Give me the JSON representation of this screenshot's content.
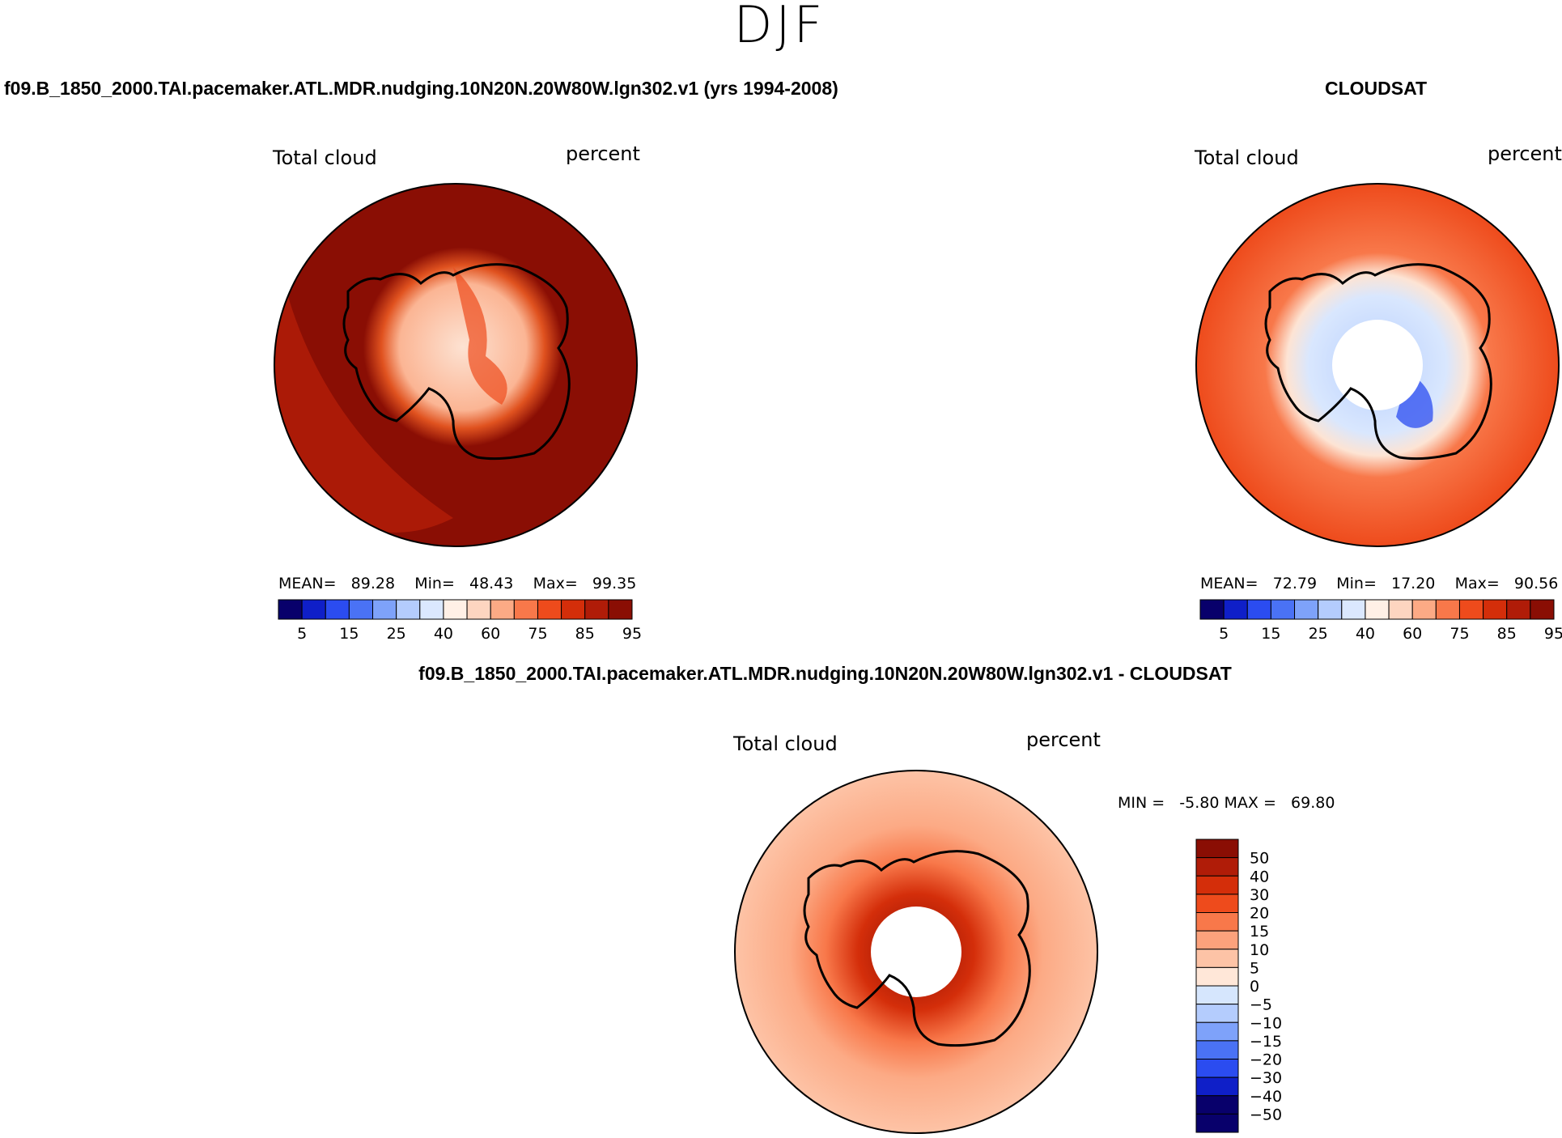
{
  "figure": {
    "season": "DJF"
  },
  "panels": [
    {
      "id": "model",
      "title": "f09.B_1850_2000.TAI.pacemaker.ATL.MDR.nudging.10N20N.20W80W.lgn302.v1 (yrs 1994-2008)",
      "left_label": "Total cloud",
      "right_label": "percent",
      "stats": {
        "mean_label": "MEAN=",
        "mean": "89.28",
        "min_label": "Min=",
        "min": "48.43",
        "max_label": "Max=",
        "max": "99.35"
      }
    },
    {
      "id": "obs",
      "title": "CLOUDSAT",
      "left_label": "Total cloud",
      "right_label": "percent",
      "stats": {
        "mean_label": "MEAN=",
        "mean": "72.79",
        "min_label": "Min=",
        "min": "17.20",
        "max_label": "Max=",
        "max": "90.56"
      }
    },
    {
      "id": "diff",
      "title": "f09.B_1850_2000.TAI.pacemaker.ATL.MDR.nudging.10N20N.20W80W.lgn302.v1 - CLOUDSAT",
      "left_label": "Total cloud",
      "right_label": "percent",
      "stats": {
        "min_label": "MIN =",
        "min": "-5.80",
        "max_label": "MAX =",
        "max": "69.80"
      }
    }
  ],
  "chart_data": [
    {
      "type": "heatmap",
      "title": "f09.B_1850_2000.TAI.pacemaker.ATL.MDR.nudging.10N20N.20W80W.lgn302.v1 (yrs 1994-2008)",
      "variable": "Total cloud",
      "units": "percent",
      "projection": "south polar stereographic",
      "colorbar_orientation": "horizontal",
      "colorbar_ticks": [
        "5",
        "15",
        "25",
        "40",
        "60",
        "75",
        "85",
        "95"
      ],
      "colorbar_levels": [
        5,
        10,
        15,
        20,
        25,
        30,
        40,
        50,
        60,
        70,
        75,
        80,
        85,
        90,
        95
      ],
      "colorbar_colors": [
        "#08006b",
        "#0f1fc8",
        "#2b4cf0",
        "#4a72f5",
        "#7ea2fa",
        "#b4ccfd",
        "#dbe8fe",
        "#fff0e6",
        "#fdd5c0",
        "#fcaa85",
        "#f8784a",
        "#ee4b1c",
        "#d42e0a",
        "#b01c08",
        "#8a0e04"
      ],
      "stats": {
        "mean": 89.28,
        "min": 48.43,
        "max": 99.35
      }
    },
    {
      "type": "heatmap",
      "title": "CLOUDSAT",
      "variable": "Total cloud",
      "units": "percent",
      "projection": "south polar stereographic",
      "colorbar_orientation": "horizontal",
      "colorbar_ticks": [
        "5",
        "15",
        "25",
        "40",
        "60",
        "75",
        "85",
        "95"
      ],
      "colorbar_levels": [
        5,
        10,
        15,
        20,
        25,
        30,
        40,
        50,
        60,
        70,
        75,
        80,
        85,
        90,
        95
      ],
      "colorbar_colors": [
        "#08006b",
        "#0f1fc8",
        "#2b4cf0",
        "#4a72f5",
        "#7ea2fa",
        "#b4ccfd",
        "#dbe8fe",
        "#fff0e6",
        "#fdd5c0",
        "#fcaa85",
        "#f8784a",
        "#ee4b1c",
        "#d42e0a",
        "#b01c08",
        "#8a0e04"
      ],
      "stats": {
        "mean": 72.79,
        "min": 17.2,
        "max": 90.56
      }
    },
    {
      "type": "heatmap",
      "title": "f09.B_1850_2000.TAI.pacemaker.ATL.MDR.nudging.10N20N.20W80W.lgn302.v1 - CLOUDSAT",
      "variable": "Total cloud",
      "units": "percent",
      "projection": "south polar stereographic",
      "colorbar_orientation": "vertical",
      "colorbar_ticks": [
        "50",
        "40",
        "30",
        "20",
        "15",
        "10",
        "5",
        "0",
        "−5",
        "−10",
        "−15",
        "−20",
        "−30",
        "−40",
        "−50"
      ],
      "colorbar_colors": [
        "#8a0e04",
        "#b01c08",
        "#d42e0a",
        "#ee4b1c",
        "#f8784a",
        "#fca27c",
        "#fdc3a6",
        "#ffe7d8",
        "#d6e6fd",
        "#b4ccfd",
        "#7ea2fa",
        "#4a72f5",
        "#2b4cf0",
        "#0f1fc8",
        "#08006b",
        "#08006b"
      ],
      "stats": {
        "min": -5.8,
        "max": 69.8
      }
    }
  ]
}
